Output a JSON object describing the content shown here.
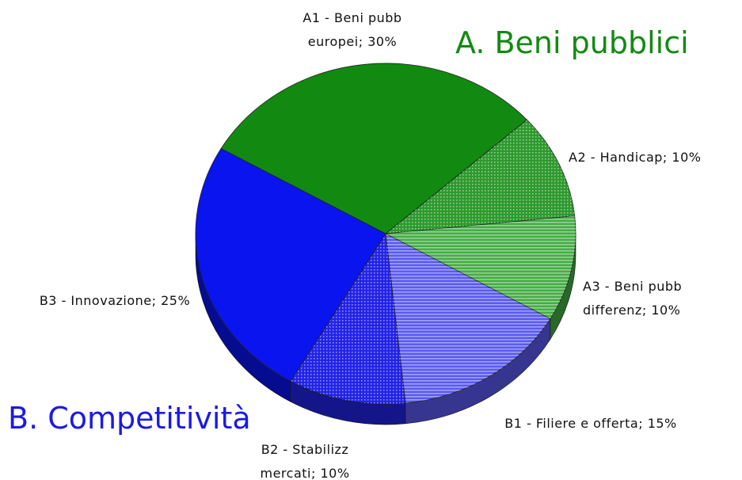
{
  "chart_data": {
    "type": "pie",
    "categories": [
      "A1 - Beni pubb europei;",
      "A2 - Handicap;",
      "A3 - Beni pubb differenz;",
      "B1 - Filiere e offerta;",
      "B2 - Stabilizz mercati;",
      "B3 - Innovazione;"
    ],
    "values": [
      30,
      10,
      10,
      15,
      10,
      25
    ],
    "value_labels": [
      "30%",
      "10%",
      "10%",
      "15%",
      "10%",
      "25%"
    ],
    "colors": [
      "#128a12",
      "#2e9a2e",
      "#45ad45",
      "#5a5af0",
      "#2424e6",
      "#0a14ee"
    ],
    "patterns": [
      "solid",
      "dots",
      "stripes",
      "stripes",
      "dots",
      "solid"
    ],
    "annotations": [
      {
        "text": "A. Beni pubblici",
        "color": "#128a12"
      },
      {
        "text": "B. Competitività",
        "color": "#1a1ae6"
      }
    ]
  }
}
